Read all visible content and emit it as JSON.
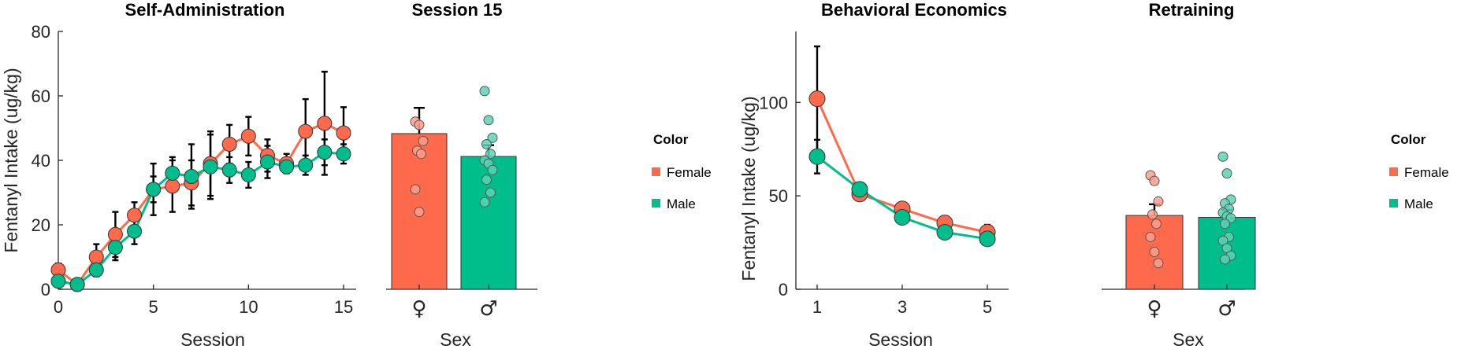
{
  "colors": {
    "female": "#FF6A4D",
    "male": "#00BE8C"
  },
  "legend": {
    "title": "Color",
    "items": [
      "Female",
      "Male"
    ]
  },
  "chart_data": [
    {
      "type": "line",
      "title": "Self-Administration",
      "xlabel": "Session",
      "ylabel": "Fentanyl Intake (ug/kg)",
      "xlim": [
        0,
        15
      ],
      "ylim": [
        0,
        80
      ],
      "xticks": [
        "0",
        "5",
        "10",
        "15"
      ],
      "yticks": [
        "0",
        "20",
        "40",
        "60",
        "80"
      ],
      "x": [
        0,
        1,
        2,
        3,
        4,
        5,
        6,
        7,
        8,
        9,
        10,
        11,
        12,
        13,
        14,
        15
      ],
      "series": [
        {
          "name": "Female",
          "values": [
            6,
            1.5,
            10,
            17,
            23,
            31,
            32,
            33,
            39,
            45,
            47.5,
            41.5,
            39,
            49,
            51.5,
            48.5
          ],
          "err": [
            2,
            1,
            4,
            7,
            4,
            8,
            8,
            7,
            10,
            6,
            6,
            5,
            3,
            10,
            16,
            8
          ]
        },
        {
          "name": "Male",
          "values": [
            2.5,
            1.5,
            6,
            13,
            18,
            31,
            36,
            35,
            38,
            37,
            35.5,
            39.5,
            38,
            38.5,
            42.5,
            42
          ],
          "err": [
            1,
            1,
            2,
            4,
            4,
            4,
            5,
            10,
            10,
            4,
            4,
            5,
            2,
            3,
            4,
            3
          ]
        }
      ]
    },
    {
      "type": "bar",
      "title": "Session 15",
      "xlabel": "Sex",
      "categories": [
        "♀",
        "♂"
      ],
      "ylim": [
        0,
        80
      ],
      "values": [
        48.3,
        41.2
      ],
      "err": [
        8,
        3.5
      ],
      "points": [
        [
          52,
          51,
          46,
          43,
          42,
          31,
          24
        ],
        [
          61.5,
          52.5,
          47,
          45,
          42,
          40,
          39,
          37,
          34,
          30,
          27
        ]
      ]
    },
    {
      "type": "line",
      "title": "Behavioral Economics",
      "xlabel": "Session",
      "ylabel": "Fentanyl Intake (ug/kg)",
      "xlim": [
        0.5,
        5.5
      ],
      "ylim": [
        0,
        138
      ],
      "xticks": [
        "1",
        "3",
        "5"
      ],
      "yticks": [
        "0",
        "50",
        "100"
      ],
      "x": [
        1,
        2,
        3,
        4,
        5
      ],
      "series": [
        {
          "name": "Female",
          "values": [
            102,
            51,
            43,
            35.5,
            30.5
          ],
          "err": [
            28,
            3,
            2,
            1.5,
            4
          ]
        },
        {
          "name": "Male",
          "values": [
            71,
            53.5,
            38.5,
            30.5,
            27
          ],
          "err": [
            9,
            3,
            3,
            2,
            3
          ]
        }
      ]
    },
    {
      "type": "bar",
      "title": "Retraining",
      "xlabel": "Sex",
      "categories": [
        "♀",
        "♂"
      ],
      "ylim": [
        0,
        138
      ],
      "values": [
        39.5,
        38.5
      ],
      "err": [
        6,
        4
      ],
      "points": [
        [
          61,
          58,
          47,
          40,
          35,
          28,
          20,
          14
        ],
        [
          71,
          62,
          48,
          46,
          43,
          41,
          39,
          38,
          35,
          28,
          26,
          22,
          18,
          16
        ]
      ]
    }
  ]
}
